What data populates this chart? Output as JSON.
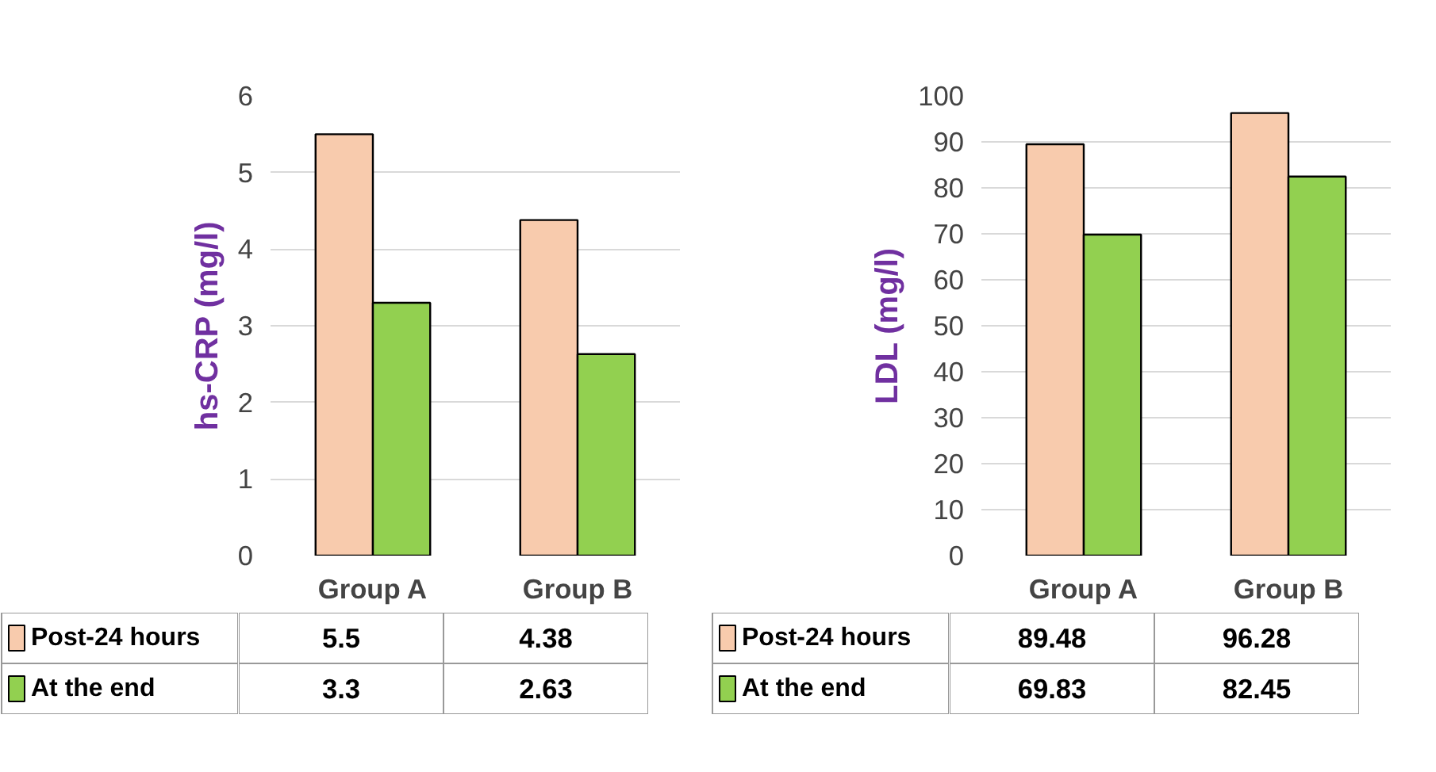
{
  "chart_data": [
    {
      "type": "bar",
      "ylabel": "hs-CRP (mg/l)",
      "categories": [
        "Group A",
        "Group B"
      ],
      "ylim": [
        0,
        6
      ],
      "yticks": [
        0,
        1,
        2,
        3,
        4,
        5,
        6
      ],
      "grid": "y",
      "legend": "bottom",
      "data_labels": true,
      "series": [
        {
          "name": "Post-24 hours",
          "color": "#f8cbad",
          "values": [
            5.5,
            4.38
          ]
        },
        {
          "name": "At the end",
          "color": "#92d050",
          "values": [
            3.3,
            2.63
          ]
        }
      ]
    },
    {
      "type": "bar",
      "ylabel": "LDL (mg/l)",
      "categories": [
        "Group A",
        "Group B"
      ],
      "ylim": [
        0,
        100
      ],
      "yticks": [
        0,
        10,
        20,
        30,
        40,
        50,
        60,
        70,
        80,
        90,
        100
      ],
      "grid": "y",
      "legend": "bottom",
      "data_labels": true,
      "series": [
        {
          "name": "Post-24 hours",
          "color": "#f8cbad",
          "values": [
            89.48,
            96.28
          ]
        },
        {
          "name": "At the end",
          "color": "#92d050",
          "values": [
            69.83,
            82.45
          ]
        }
      ]
    }
  ]
}
